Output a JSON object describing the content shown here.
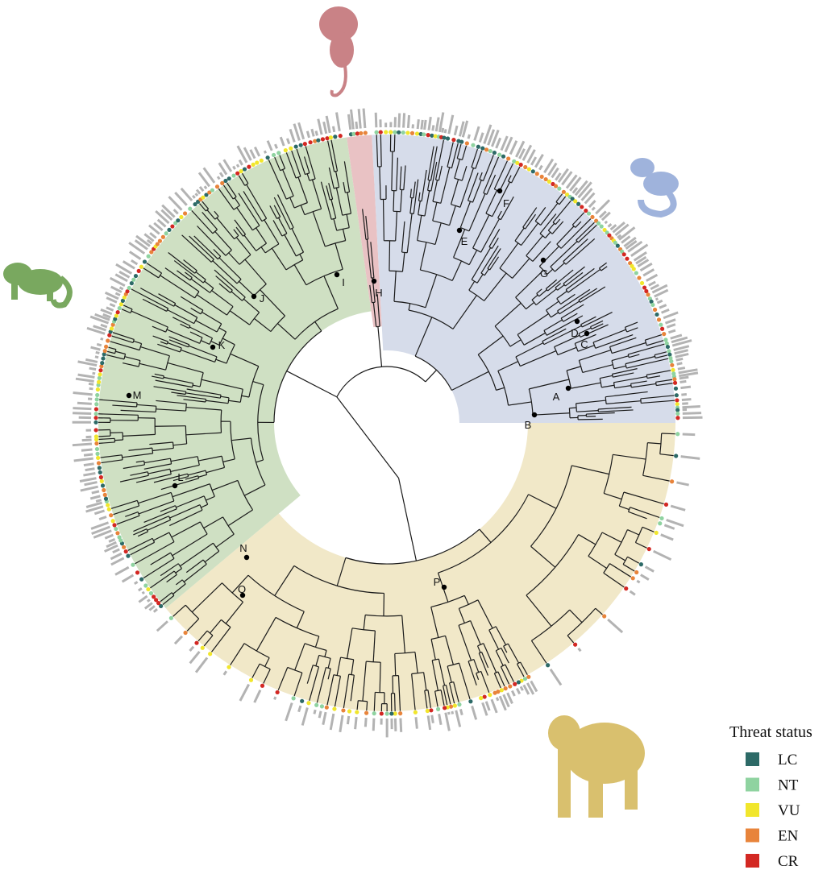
{
  "legend": {
    "title": "Threat status",
    "items": [
      {
        "name": "LC",
        "color": "#2d6a67"
      },
      {
        "name": "NT",
        "color": "#8fd3a0"
      },
      {
        "name": "VU",
        "color": "#f1e62c"
      },
      {
        "name": "EN",
        "color": "#e8843b"
      },
      {
        "name": "CR",
        "color": "#d32823"
      }
    ]
  },
  "node_labels": [
    "A",
    "B",
    "C",
    "D",
    "E",
    "F",
    "G",
    "H",
    "I",
    "J",
    "K",
    "L",
    "M",
    "N",
    "O",
    "P"
  ]
}
